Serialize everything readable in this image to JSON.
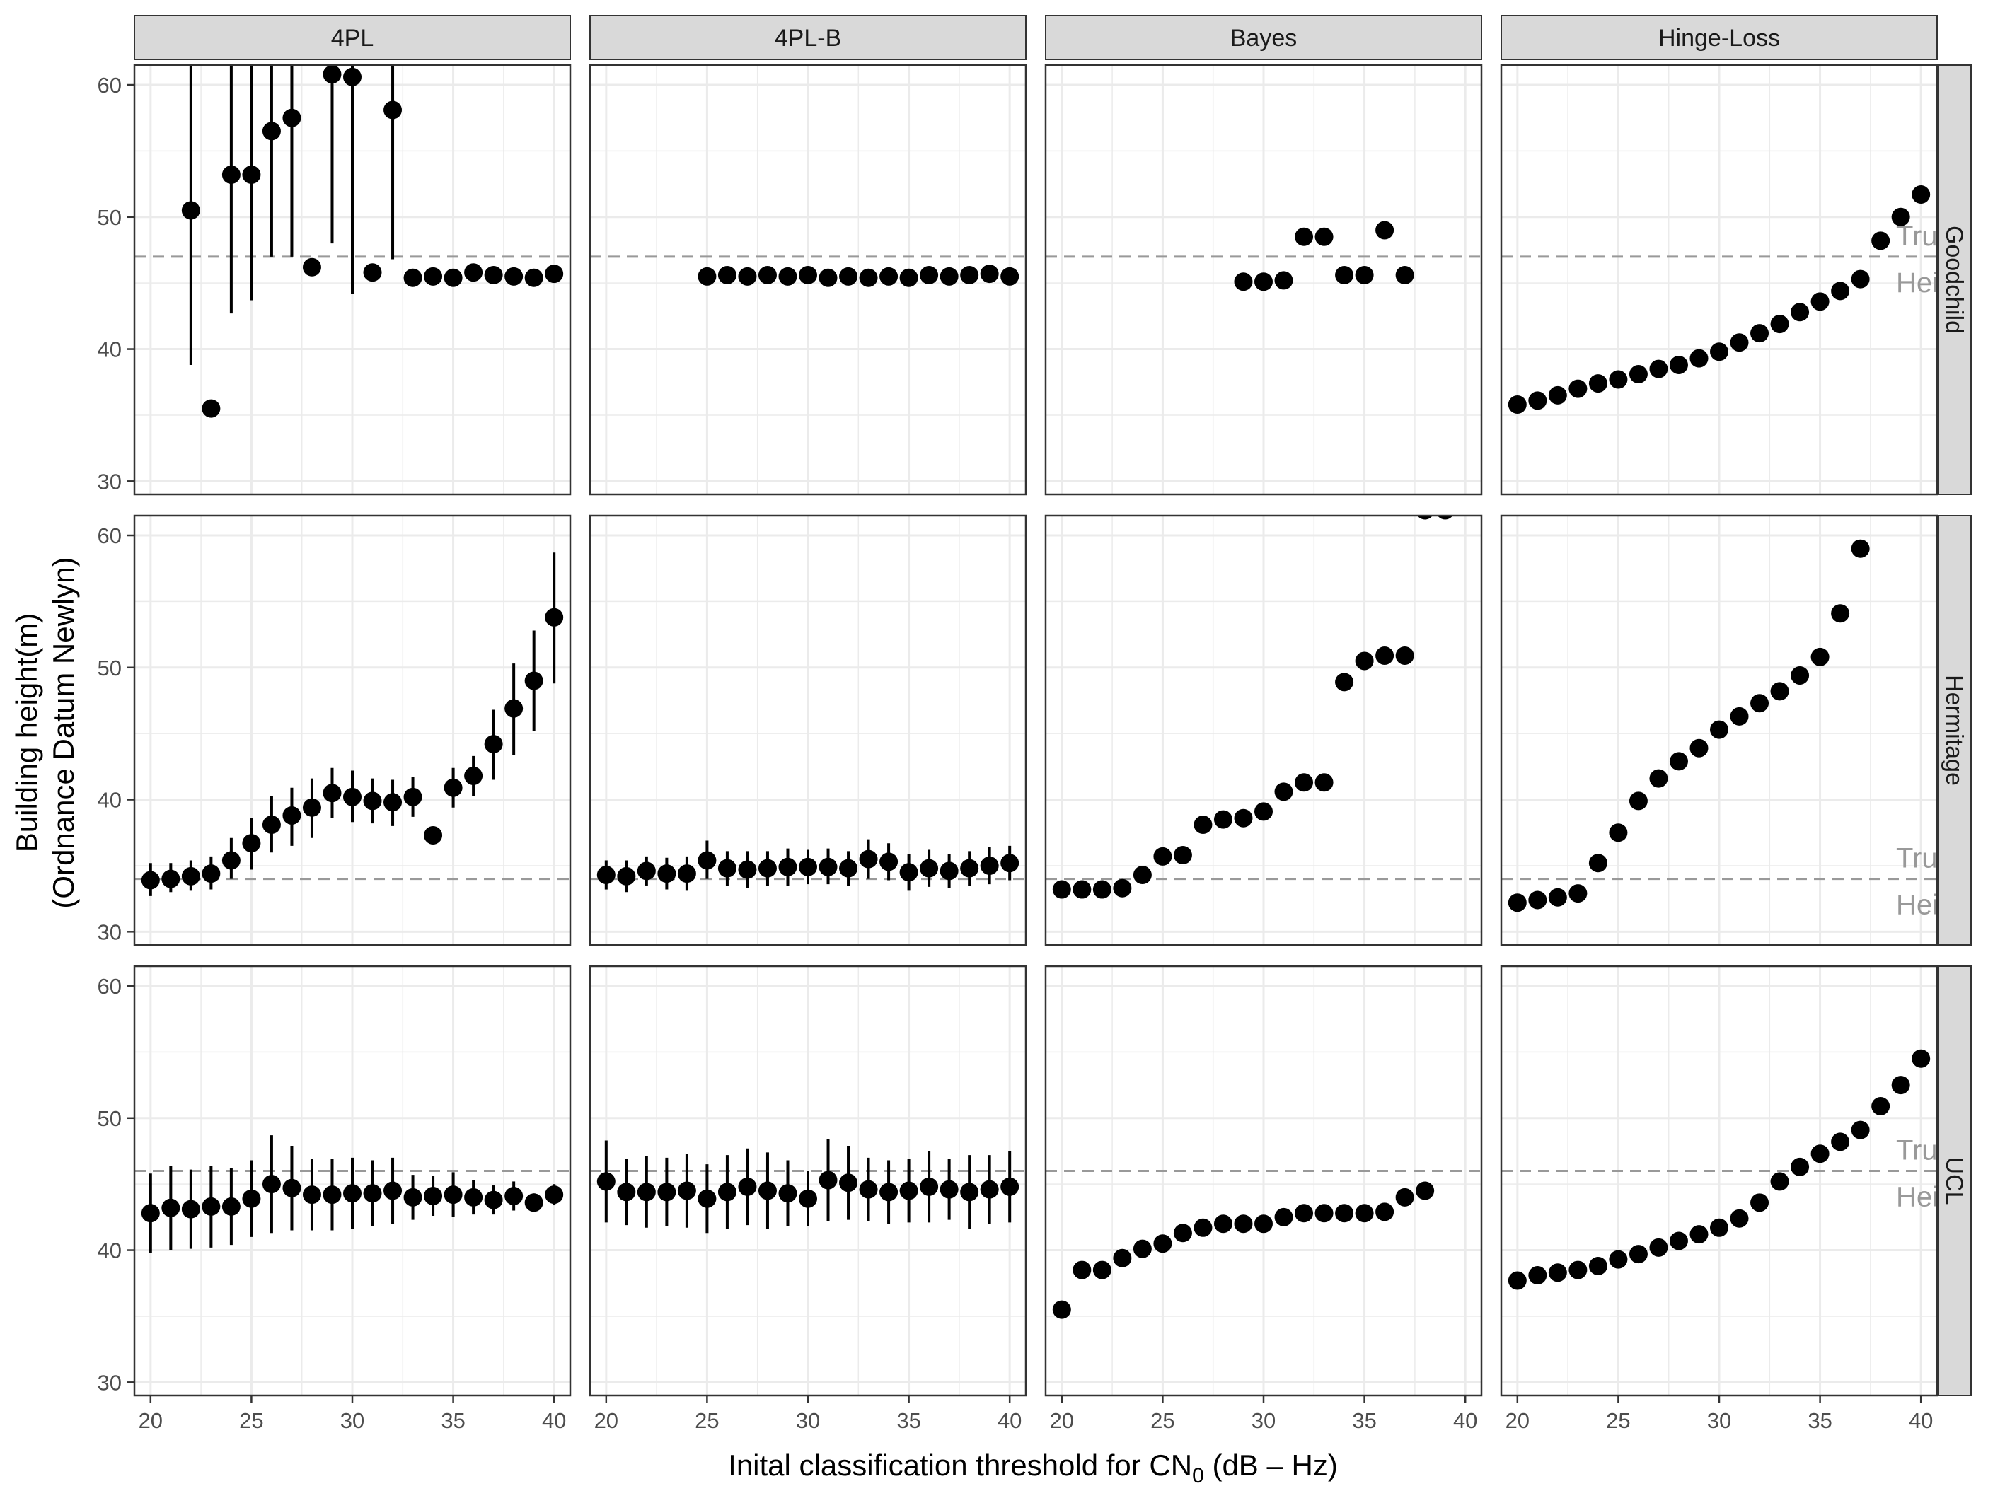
{
  "chart_data": {
    "type": "scatter",
    "layout": "facet-grid",
    "x_axis": {
      "label_prefix": "Inital classification threshold for CN",
      "label_sub": "0",
      "label_suffix": " (dB – Hz)",
      "lim": [
        19.2,
        40.8
      ],
      "ticks": [
        20,
        25,
        30,
        35,
        40
      ],
      "tick_labels": [
        "20",
        "25",
        "30",
        "35",
        "40"
      ]
    },
    "y_axis": {
      "label_line1": "Building height(m)",
      "label_line2": "(Ordnance Datum Newlyn)",
      "lim": [
        29,
        61.5
      ],
      "ticks": [
        30,
        40,
        50,
        60
      ],
      "tick_labels": [
        "30",
        "40",
        "50",
        "60"
      ]
    },
    "columns": [
      "4PL",
      "4PL-B",
      "Bayes",
      "Hinge-Loss"
    ],
    "rows": [
      "Goodchild",
      "Hermitage",
      "UCL"
    ],
    "true_height": {
      "label_line1": "True",
      "label_line2": "Height",
      "values": {
        "Goodchild": 47,
        "Hermitage": 34,
        "UCL": 46
      }
    },
    "colors": {
      "point": "#000000",
      "strip_bg": "#d9d9d9",
      "panel_border": "#333333",
      "grid": "#ebebeb",
      "reference_line": "#999999",
      "annotation": "#999999"
    },
    "panels": {
      "Goodchild": {
        "4PL": {
          "x": [
            22,
            23,
            24,
            25,
            26,
            27,
            28,
            29,
            30,
            31,
            32,
            33,
            34,
            35,
            36,
            37,
            38,
            39,
            40
          ],
          "y": [
            50.5,
            35.5,
            53.2,
            53.2,
            56.5,
            57.5,
            46.2,
            60.8,
            60.6,
            45.8,
            58.1,
            45.4,
            45.5,
            45.4,
            45.8,
            45.6,
            45.5,
            45.4,
            45.7
          ],
          "lo": [
            38.8,
            null,
            42.7,
            43.7,
            47,
            47,
            null,
            48,
            44.2,
            null,
            46.8,
            null,
            null,
            null,
            null,
            null,
            null,
            null,
            null
          ],
          "hi": [
            62,
            null,
            62,
            62,
            62,
            62,
            null,
            62,
            62,
            null,
            62,
            null,
            null,
            null,
            null,
            null,
            null,
            null,
            null
          ]
        },
        "4PL-B": {
          "x": [
            25,
            26,
            27,
            28,
            29,
            30,
            31,
            32,
            33,
            34,
            35,
            36,
            37,
            38,
            39,
            40
          ],
          "y": [
            45.5,
            45.6,
            45.5,
            45.6,
            45.5,
            45.6,
            45.4,
            45.5,
            45.4,
            45.5,
            45.4,
            45.6,
            45.5,
            45.6,
            45.7,
            45.5
          ],
          "lo": [],
          "hi": []
        },
        "Bayes": {
          "x": [
            29,
            30,
            31,
            32,
            33,
            34,
            35,
            36,
            37
          ],
          "y": [
            45.1,
            45.1,
            45.2,
            48.5,
            48.5,
            45.6,
            45.6,
            49.0,
            45.6
          ],
          "lo": [],
          "hi": []
        },
        "Hinge-Loss": {
          "x": [
            20,
            21,
            22,
            23,
            24,
            25,
            26,
            27,
            28,
            29,
            30,
            31,
            32,
            33,
            34,
            35,
            36,
            37,
            38,
            39,
            40
          ],
          "y": [
            35.8,
            36.1,
            36.5,
            37.0,
            37.4,
            37.7,
            38.1,
            38.5,
            38.8,
            39.3,
            39.8,
            40.5,
            41.2,
            41.9,
            42.8,
            43.6,
            44.4,
            45.3,
            48.2,
            50.0,
            51.7
          ],
          "lo": [],
          "hi": []
        }
      },
      "Hermitage": {
        "4PL": {
          "x": [
            20,
            21,
            22,
            23,
            24,
            25,
            26,
            27,
            28,
            29,
            30,
            31,
            32,
            33,
            34,
            35,
            36,
            37,
            38,
            39,
            40
          ],
          "y": [
            33.9,
            34.0,
            34.2,
            34.4,
            35.4,
            36.7,
            38.1,
            38.8,
            39.4,
            40.5,
            40.2,
            39.9,
            39.8,
            40.2,
            37.3,
            40.9,
            41.8,
            44.2,
            46.9,
            49.0,
            53.8
          ],
          "lo": [
            32.7,
            33.0,
            33.1,
            33.2,
            34.0,
            34.7,
            36.0,
            36.5,
            37.1,
            38.6,
            38.3,
            38.2,
            38.0,
            38.7,
            null,
            39.4,
            40.3,
            41.5,
            43.4,
            45.2,
            48.8
          ],
          "hi": [
            35.2,
            35.2,
            35.4,
            35.7,
            37.1,
            38.6,
            40.3,
            40.9,
            41.6,
            42.4,
            42.2,
            41.6,
            41.5,
            41.7,
            null,
            42.4,
            43.3,
            46.8,
            50.3,
            52.8,
            58.7
          ]
        },
        "4PL-B": {
          "x": [
            20,
            21,
            22,
            23,
            24,
            25,
            26,
            27,
            28,
            29,
            30,
            31,
            32,
            33,
            34,
            35,
            36,
            37,
            38,
            39,
            40
          ],
          "y": [
            34.3,
            34.2,
            34.6,
            34.4,
            34.4,
            35.4,
            34.8,
            34.7,
            34.8,
            34.9,
            34.9,
            34.9,
            34.8,
            35.5,
            35.3,
            34.5,
            34.8,
            34.6,
            34.8,
            35.0,
            35.2
          ],
          "lo": [
            33.2,
            33.0,
            33.5,
            33.2,
            33.1,
            34.0,
            33.5,
            33.3,
            33.5,
            33.5,
            33.6,
            33.6,
            33.5,
            34.0,
            33.9,
            33.1,
            33.4,
            33.3,
            33.5,
            33.6,
            33.9
          ],
          "hi": [
            35.4,
            35.4,
            35.7,
            35.6,
            35.7,
            36.9,
            36.1,
            36.1,
            36.1,
            36.3,
            36.2,
            36.3,
            36.1,
            37.0,
            36.7,
            35.9,
            36.2,
            35.9,
            36.1,
            36.4,
            36.5
          ]
        },
        "Bayes": {
          "x": [
            20,
            21,
            22,
            23,
            24,
            25,
            26,
            27,
            28,
            29,
            30,
            31,
            32,
            33,
            34,
            35,
            36,
            37,
            38,
            39
          ],
          "y": [
            33.2,
            33.2,
            33.2,
            33.3,
            34.3,
            35.7,
            35.8,
            38.1,
            38.5,
            38.6,
            39.1,
            40.6,
            41.3,
            41.3,
            48.9,
            50.5,
            50.9,
            50.9,
            61.9,
            61.9
          ],
          "lo": [],
          "hi": []
        },
        "Hinge-Loss": {
          "x": [
            20,
            21,
            22,
            23,
            24,
            25,
            26,
            27,
            28,
            29,
            30,
            31,
            32,
            33,
            34,
            35,
            36,
            37
          ],
          "y": [
            32.2,
            32.4,
            32.6,
            32.9,
            35.2,
            37.5,
            39.9,
            41.6,
            42.9,
            43.9,
            45.3,
            46.3,
            47.3,
            48.2,
            49.4,
            50.8,
            54.1,
            59.0
          ],
          "lo": [],
          "hi": []
        }
      },
      "UCL": {
        "4PL": {
          "x": [
            20,
            21,
            22,
            23,
            24,
            25,
            26,
            27,
            28,
            29,
            30,
            31,
            32,
            33,
            34,
            35,
            36,
            37,
            38,
            39,
            40
          ],
          "y": [
            42.8,
            43.2,
            43.1,
            43.3,
            43.3,
            43.9,
            45.0,
            44.7,
            44.2,
            44.2,
            44.3,
            44.3,
            44.5,
            44.0,
            44.1,
            44.2,
            44.0,
            43.8,
            44.1,
            43.6,
            44.2
          ],
          "lo": [
            39.8,
            40.0,
            40.1,
            40.2,
            40.4,
            41.0,
            41.3,
            41.5,
            41.5,
            41.5,
            41.6,
            41.8,
            42.0,
            42.3,
            42.6,
            42.5,
            42.7,
            42.7,
            43.0,
            42.9,
            43.4
          ],
          "hi": [
            45.8,
            46.4,
            46.1,
            46.4,
            46.2,
            46.8,
            48.7,
            47.9,
            46.9,
            46.9,
            47.0,
            46.8,
            47.0,
            45.7,
            45.6,
            45.9,
            45.3,
            44.9,
            45.2,
            44.3,
            45.0
          ]
        },
        "4PL-B": {
          "x": [
            20,
            21,
            22,
            23,
            24,
            25,
            26,
            27,
            28,
            29,
            30,
            31,
            32,
            33,
            34,
            35,
            36,
            37,
            38,
            39,
            40
          ],
          "y": [
            45.2,
            44.4,
            44.4,
            44.4,
            44.5,
            43.9,
            44.4,
            44.8,
            44.5,
            44.3,
            43.9,
            45.3,
            45.1,
            44.6,
            44.4,
            44.5,
            44.8,
            44.6,
            44.4,
            44.6,
            44.8
          ],
          "lo": [
            42.1,
            41.9,
            41.7,
            41.8,
            41.7,
            41.3,
            41.6,
            41.9,
            41.6,
            41.8,
            41.8,
            42.2,
            42.3,
            42.2,
            42.0,
            42.1,
            42.1,
            42.3,
            41.6,
            42.0,
            42.1
          ],
          "hi": [
            48.3,
            46.9,
            47.1,
            47.0,
            47.3,
            46.5,
            47.2,
            47.7,
            47.4,
            46.8,
            46.0,
            48.4,
            47.9,
            47.0,
            46.8,
            46.9,
            47.5,
            46.9,
            47.2,
            47.2,
            47.5
          ]
        },
        "Bayes": {
          "x": [
            20,
            21,
            22,
            23,
            24,
            25,
            26,
            27,
            28,
            29,
            30,
            31,
            32,
            33,
            34,
            35,
            36,
            37,
            38
          ],
          "y": [
            35.5,
            38.5,
            38.5,
            39.4,
            40.1,
            40.5,
            41.3,
            41.7,
            42.0,
            42.0,
            42.0,
            42.5,
            42.8,
            42.8,
            42.8,
            42.8,
            42.9,
            44.0,
            44.5
          ],
          "lo": [],
          "hi": []
        },
        "Hinge-Loss": {
          "x": [
            20,
            21,
            22,
            23,
            24,
            25,
            26,
            27,
            28,
            29,
            30,
            31,
            32,
            33,
            34,
            35,
            36,
            37,
            38,
            39,
            40
          ],
          "y": [
            37.7,
            38.1,
            38.3,
            38.5,
            38.8,
            39.3,
            39.7,
            40.2,
            40.7,
            41.2,
            41.7,
            42.4,
            43.6,
            45.2,
            46.3,
            47.3,
            48.2,
            49.1,
            50.9,
            52.5,
            54.5
          ],
          "lo": [],
          "hi": []
        }
      }
    }
  }
}
